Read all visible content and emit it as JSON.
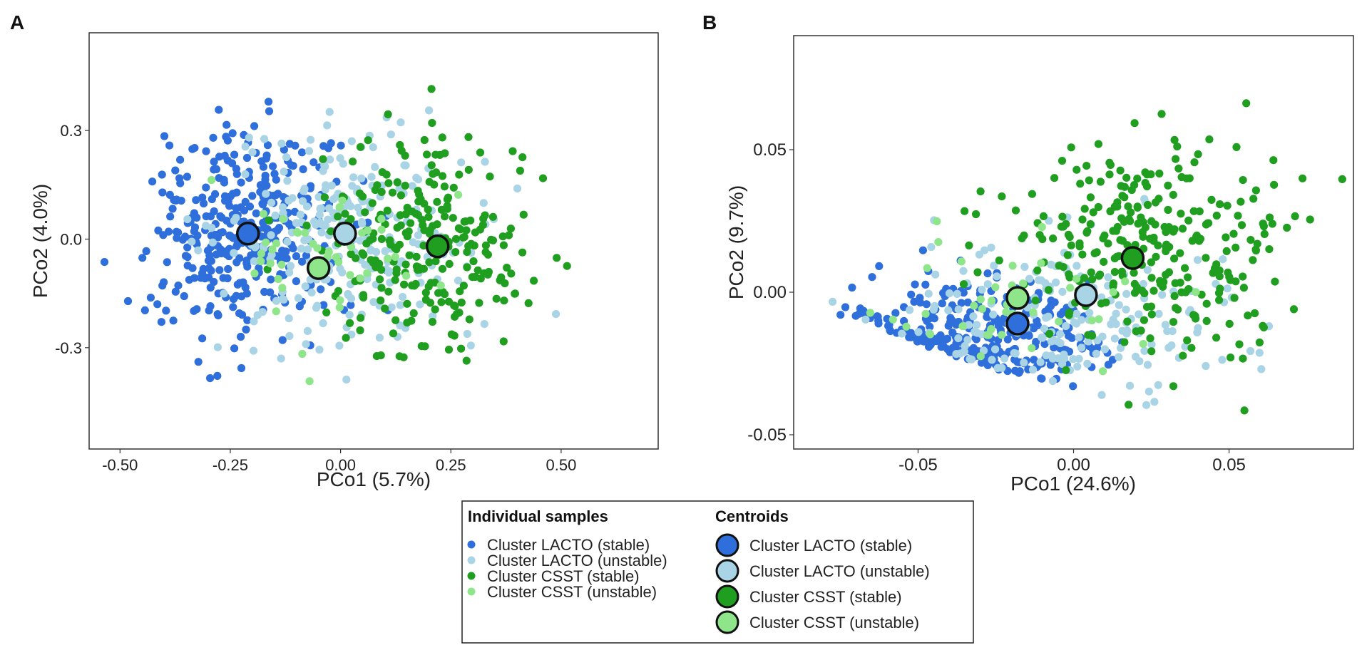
{
  "chart_data": [
    {
      "panel": "A",
      "type": "scatter",
      "xlabel": "PCo1 (5.7%)",
      "ylabel": "PCo2 (4.0%)",
      "xticks": [
        -0.5,
        -0.25,
        0.0,
        0.25,
        0.5
      ],
      "xtick_labels": [
        "-0.50",
        "-0.25",
        "0.00",
        "0.25",
        "0.50"
      ],
      "yticks": [
        0.3,
        0.0,
        -0.3
      ],
      "ytick_labels": [
        "0.3",
        "0.0",
        "-0.3"
      ],
      "xlim": [
        -0.57,
        0.72
      ],
      "ylim": [
        -0.58,
        0.57
      ],
      "series": [
        {
          "name": "Cluster LACTO (stable)",
          "color": "#2e6fdc",
          "count": 360,
          "center": [
            -0.22,
            0.02
          ],
          "spread": [
            0.14,
            0.19
          ]
        },
        {
          "name": "Cluster LACTO (unstable)",
          "color": "#a9d4e6",
          "count": 260,
          "center": [
            0.02,
            0.0
          ],
          "spread": [
            0.2,
            0.2
          ]
        },
        {
          "name": "Cluster CSST (stable)",
          "color": "#1f9e1f",
          "count": 270,
          "center": [
            0.2,
            -0.02
          ],
          "spread": [
            0.17,
            0.19
          ]
        },
        {
          "name": "Cluster CSST (unstable)",
          "color": "#8fe58a",
          "count": 45,
          "center": [
            -0.02,
            -0.06
          ],
          "spread": [
            0.14,
            0.18
          ]
        }
      ],
      "centroids": [
        {
          "name": "Cluster LACTO (stable)",
          "color": "#2e6fdc",
          "x": -0.21,
          "y": 0.015
        },
        {
          "name": "Cluster LACTO (unstable)",
          "color": "#a9d4e6",
          "x": 0.01,
          "y": 0.015
        },
        {
          "name": "Cluster CSST (stable)",
          "color": "#1f9e1f",
          "x": 0.22,
          "y": -0.02
        },
        {
          "name": "Cluster CSST (unstable)",
          "color": "#8fe58a",
          "x": -0.05,
          "y": -0.08
        }
      ]
    },
    {
      "panel": "B",
      "type": "scatter",
      "xlabel": "PCo1 (24.6%)",
      "ylabel": "PCo2 (9.7%)",
      "xticks": [
        -0.05,
        0.0,
        0.05
      ],
      "xtick_labels": [
        "-0.05",
        "0.00",
        "0.05"
      ],
      "yticks": [
        0.05,
        0.0,
        -0.05
      ],
      "ytick_labels": [
        "0.05",
        "0.00",
        "-0.05"
      ],
      "xlim": [
        -0.09,
        0.09
      ],
      "ylim": [
        -0.055,
        0.09
      ],
      "series": [
        {
          "name": "Cluster LACTO (stable)",
          "color": "#2e6fdc",
          "count": 300,
          "center": [
            -0.03,
            -0.015
          ],
          "spread": [
            0.026,
            0.015
          ]
        },
        {
          "name": "Cluster LACTO (unstable)",
          "color": "#a9d4e6",
          "count": 200,
          "center": [
            0.0,
            -0.01
          ],
          "spread": [
            0.035,
            0.02
          ]
        },
        {
          "name": "Cluster CSST (stable)",
          "color": "#1f9e1f",
          "count": 300,
          "center": [
            0.025,
            0.015
          ],
          "spread": [
            0.028,
            0.024
          ]
        },
        {
          "name": "Cluster CSST (unstable)",
          "color": "#8fe58a",
          "count": 40,
          "center": [
            -0.02,
            -0.005
          ],
          "spread": [
            0.03,
            0.015
          ]
        }
      ],
      "centroids": [
        {
          "name": "Cluster LACTO (stable)",
          "color": "#2e6fdc",
          "x": -0.018,
          "y": -0.011
        },
        {
          "name": "Cluster LACTO (unstable)",
          "color": "#a9d4e6",
          "x": 0.004,
          "y": -0.001
        },
        {
          "name": "Cluster CSST (stable)",
          "color": "#1f9e1f",
          "x": 0.019,
          "y": 0.012
        },
        {
          "name": "Cluster CSST (unstable)",
          "color": "#8fe58a",
          "x": -0.018,
          "y": -0.002
        }
      ]
    }
  ],
  "panel_labels": {
    "a": "A",
    "b": "B"
  },
  "legend": {
    "samples_title": "Individual samples",
    "centroids_title": "Centroids",
    "items": [
      {
        "label": "Cluster LACTO (stable)",
        "color": "#2e6fdc"
      },
      {
        "label": "Cluster LACTO (unstable)",
        "color": "#a9d4e6"
      },
      {
        "label": "Cluster CSST (stable)",
        "color": "#1f9e1f"
      },
      {
        "label": "Cluster CSST (unstable)",
        "color": "#8fe58a"
      }
    ]
  }
}
